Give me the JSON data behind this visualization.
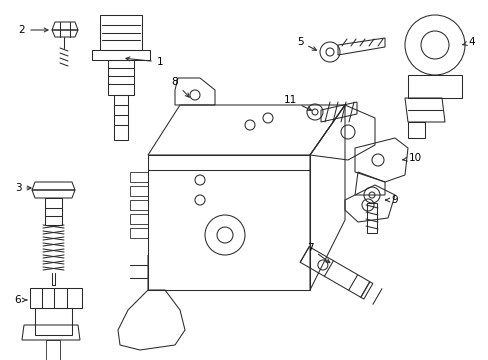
{
  "background_color": "#ffffff",
  "line_color": "#2a2a2a",
  "label_color": "#000000",
  "fig_width": 4.89,
  "fig_height": 3.6,
  "dpi": 100,
  "lw": 0.75,
  "font_size": 7.5
}
